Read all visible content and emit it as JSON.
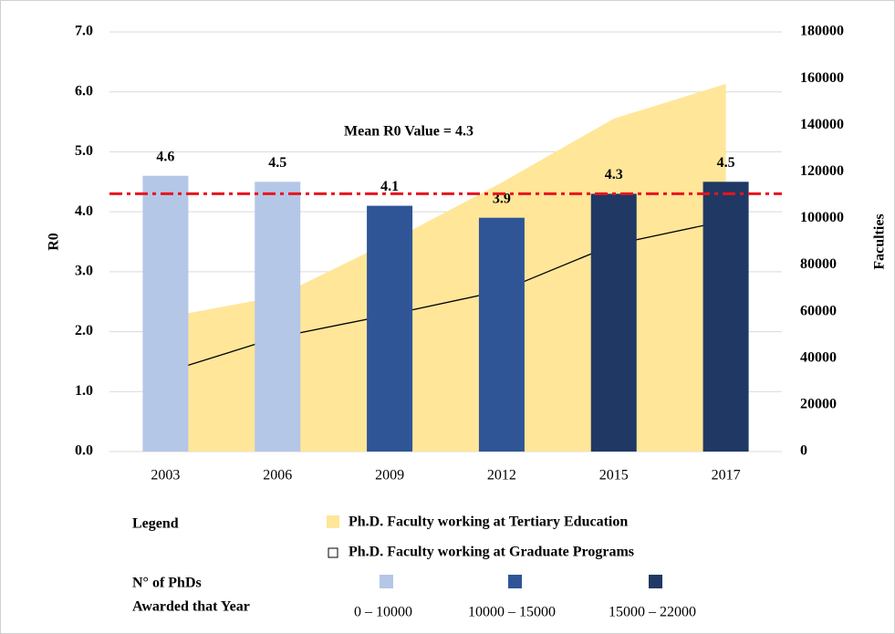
{
  "chart_data": {
    "type": "bar",
    "categories": [
      "2003",
      "2006",
      "2009",
      "2012",
      "2015",
      "2017"
    ],
    "y_label": "R0",
    "y2_label": "Faculties",
    "ylim": [
      0,
      7
    ],
    "yticks": [
      {
        "value": 0,
        "label": "0.0"
      },
      {
        "value": 1,
        "label": "1.0"
      },
      {
        "value": 2,
        "label": "2.0"
      },
      {
        "value": 3,
        "label": "3.0"
      },
      {
        "value": 4,
        "label": "4.0"
      },
      {
        "value": 5,
        "label": "5.0"
      },
      {
        "value": 6,
        "label": "6.0"
      },
      {
        "value": 7,
        "label": "7.0"
      }
    ],
    "y2lim": [
      0,
      180000
    ],
    "y2ticks": [
      0,
      20000,
      40000,
      60000,
      80000,
      100000,
      120000,
      140000,
      160000,
      180000
    ],
    "grid": true,
    "series": [
      {
        "type": "bar",
        "values": [
          4.6,
          4.5,
          4.1,
          3.9,
          4.3,
          4.5
        ],
        "colors": [
          "#b4c7e7",
          "#b4c7e7",
          "#2f5597",
          "#2f5597",
          "#203864",
          "#203864"
        ]
      },
      {
        "type": "area",
        "name": "Ph.D. Faculty working at Tertiary Education",
        "color": "#ffe699",
        "axis": "y2",
        "values": [
          57500,
          66500,
          90000,
          115400,
          142800,
          157700
        ]
      },
      {
        "type": "line",
        "name": "Ph.D. Faculty working at Graduate Programs",
        "color": "#000000",
        "axis": "y2",
        "values": [
          34000,
          49000,
          58700,
          69000,
          88800,
          99000
        ]
      }
    ],
    "reference_line": {
      "value": 4.3,
      "label": "Mean  R0 Value = 4.3",
      "color": "#e8141e"
    },
    "legend": {
      "title": "Legend"
    },
    "color_legend": {
      "title": [
        "N° of PhDs",
        "Awarded  that Year"
      ],
      "items": [
        {
          "label": "0 – 10000",
          "color": "#b4c7e7"
        },
        {
          "label": "10000  – 15000",
          "color": "#2f5597"
        },
        {
          "label": "15000  – 22000",
          "color": "#203864"
        }
      ]
    }
  }
}
